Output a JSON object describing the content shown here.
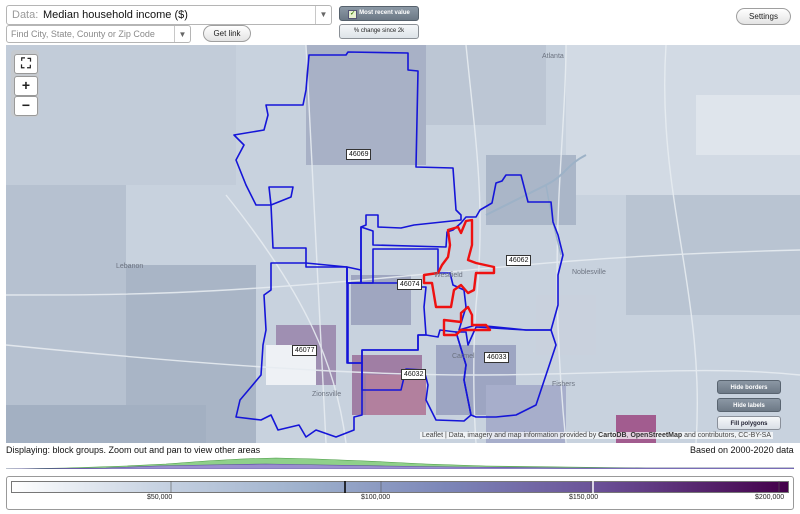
{
  "controls": {
    "data_label": "Data:",
    "data_value": "Median household income ($)",
    "search_placeholder": "Find City, State, County or Zip Code",
    "get_link": "Get link",
    "most_recent": "Most recent value",
    "pct_change": "% change since 2k",
    "settings": "Settings"
  },
  "map": {
    "zip_labels": [
      "46069",
      "46062",
      "46074",
      "46077",
      "46032",
      "46033"
    ],
    "place_labels": [
      "Atlanta",
      "Lebanon",
      "Noblesville",
      "Westfield",
      "Zionsville",
      "Carmel",
      "Fishers"
    ],
    "buttons": {
      "hide_borders": "Hide borders",
      "hide_labels": "Hide labels",
      "fill_polygons": "Fill polygons"
    },
    "attribution": {
      "leaflet": "Leaflet",
      "text": " | Data, imagery and map information provided by ",
      "carto": "CartoDB",
      "sep": ", ",
      "osm": "OpenStreetMap",
      "rest": " and contributors, CC-BY-SA"
    },
    "colors": {
      "boundary": "#1515d8",
      "highlight": "#ee1111"
    }
  },
  "status": {
    "displaying": "Displaying: block groups. Zoom out and pan to view other areas",
    "based_on": "Based on 2000-2020 data"
  },
  "legend": {
    "ticks": [
      "$50,000",
      "$100,000",
      "$150,000",
      "$200,000"
    ],
    "color_low": "#ffffff",
    "color_high": "#44004a"
  }
}
